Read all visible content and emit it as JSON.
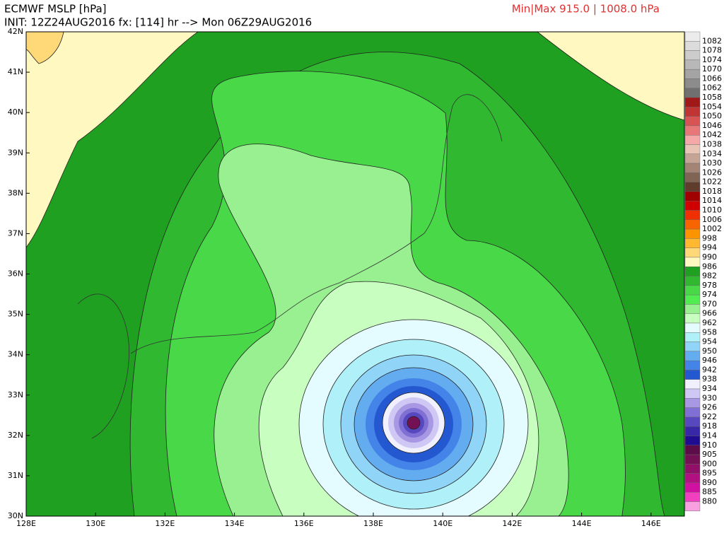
{
  "header": {
    "title": "ECMWF MSLP [hPa]",
    "init": "INIT: 12Z24AUG2016 fx: [114] hr --> Mon 06Z29AUG2016",
    "minmax": "Min|Max 915.0 | 1008.0 hPa"
  },
  "map": {
    "lat_labels": [
      "42N",
      "41N",
      "40N",
      "39N",
      "38N",
      "37N",
      "36N",
      "35N",
      "34N",
      "33N",
      "32N",
      "31N",
      "30N"
    ],
    "lon_labels": [
      "128E",
      "130E",
      "132E",
      "134E",
      "136E",
      "138E",
      "140E",
      "142E",
      "144E",
      "146E"
    ]
  },
  "colorbar": {
    "labels": [
      "1082",
      "1078",
      "1074",
      "1070",
      "1066",
      "1062",
      "1058",
      "1054",
      "1050",
      "1046",
      "1042",
      "1038",
      "1034",
      "1030",
      "1026",
      "1022",
      "1018",
      "1014",
      "1010",
      "1006",
      "1002",
      "998",
      "994",
      "990",
      "986",
      "982",
      "978",
      "974",
      "970",
      "966",
      "962",
      "958",
      "954",
      "950",
      "946",
      "942",
      "938",
      "934",
      "930",
      "926",
      "922",
      "918",
      "914",
      "910",
      "905",
      "900",
      "895",
      "890",
      "885",
      "880"
    ],
    "colors": [
      "#ececec",
      "#dcdcdc",
      "#cccccc",
      "#b8b8b8",
      "#a4a4a4",
      "#8c8c8c",
      "#707070",
      "#a01818",
      "#c03434",
      "#d85454",
      "#e87878",
      "#f4a8a8",
      "#e8c4b4",
      "#c4a494",
      "#a48474",
      "#806454",
      "#603c2c",
      "#a00000",
      "#d00000",
      "#f03000",
      "#f86400",
      "#fc9400",
      "#ffb830",
      "#ffd878",
      "#fff8c0",
      "#20a020",
      "#30b830",
      "#48d848",
      "#50ec50",
      "#98f090",
      "#c8ffc0",
      "#e4fcff",
      "#b0f0f8",
      "#90d4f8",
      "#64acf0",
      "#4484e8",
      "#2458d0",
      "#f0f0ff",
      "#d0c8f4",
      "#a898e4",
      "#8070d4",
      "#5848c0",
      "#3828a8",
      "#200c90",
      "#5c0c48",
      "#741054",
      "#901068",
      "#b01080",
      "#d010a0",
      "#f040c0",
      "#f8a0e0"
    ]
  }
}
